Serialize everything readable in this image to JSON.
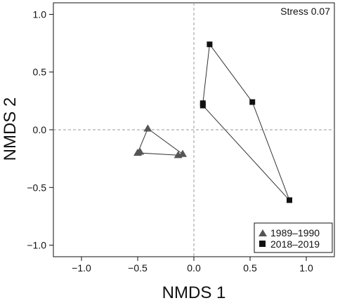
{
  "chart_data": {
    "type": "scatter",
    "title": "",
    "xlabel": "NMDS 1",
    "ylabel": "NMDS 2",
    "xlim": [
      -1.25,
      1.25
    ],
    "ylim": [
      -1.1,
      1.1
    ],
    "x_ticks": [
      -1.0,
      -0.5,
      0.0,
      0.5,
      1.0
    ],
    "y_ticks": [
      -1.0,
      -0.5,
      0.0,
      0.5,
      1.0
    ],
    "x_tick_labels": [
      "−1.0",
      "−0.5",
      "0.0",
      "0.5",
      "1.0"
    ],
    "y_tick_labels": [
      "−1.0",
      "−0.5",
      "0.0",
      "0.5",
      "1.0"
    ],
    "annotation": "Stress 0.07",
    "reference_lines": {
      "x": 0,
      "y": 0,
      "style": "dashed"
    },
    "grid": false,
    "legend_position": "bottom-right",
    "series": [
      {
        "name": "1989–1990",
        "marker": "triangle",
        "color": "#555555",
        "points": [
          {
            "x": -0.41,
            "y": 0.01
          },
          {
            "x": -0.5,
            "y": -0.2
          },
          {
            "x": -0.48,
            "y": -0.19
          },
          {
            "x": -0.14,
            "y": -0.22
          },
          {
            "x": -0.1,
            "y": -0.21
          }
        ],
        "hull": [
          {
            "x": -0.41,
            "y": 0.01
          },
          {
            "x": -0.5,
            "y": -0.2
          },
          {
            "x": -0.14,
            "y": -0.22
          },
          {
            "x": -0.1,
            "y": -0.21
          }
        ]
      },
      {
        "name": "2018–2019",
        "marker": "square",
        "color": "#111111",
        "points": [
          {
            "x": 0.14,
            "y": 0.74
          },
          {
            "x": 0.52,
            "y": 0.24
          },
          {
            "x": 0.08,
            "y": 0.23
          },
          {
            "x": 0.08,
            "y": 0.21
          },
          {
            "x": 0.85,
            "y": -0.61
          }
        ],
        "hull": [
          {
            "x": 0.14,
            "y": 0.74
          },
          {
            "x": 0.52,
            "y": 0.24
          },
          {
            "x": 0.85,
            "y": -0.61
          },
          {
            "x": 0.08,
            "y": 0.21
          },
          {
            "x": 0.08,
            "y": 0.23
          }
        ]
      }
    ]
  }
}
